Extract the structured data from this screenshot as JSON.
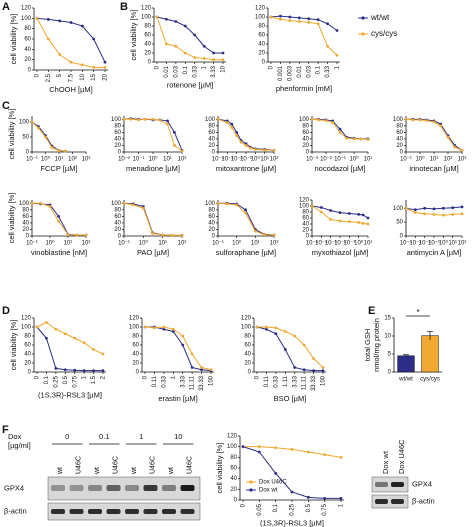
{
  "panels": [
    "A",
    "B",
    "C",
    "D",
    "E",
    "F"
  ],
  "chart_data": [
    {
      "type": "line",
      "ylabel": "cell viability [%]",
      "xlabel": "ChOOH [µM]",
      "categories": [
        "0",
        "2.5",
        "5",
        "7.5",
        "10",
        "15",
        "20"
      ],
      "ylim": [
        0,
        120
      ],
      "yticks": [
        0,
        20,
        40,
        60,
        80,
        100,
        120
      ],
      "series": [
        {
          "color": "#2b2d86",
          "values": [
            100,
            98,
            95,
            92,
            85,
            60,
            15
          ]
        },
        {
          "color": "#f0a830",
          "values": [
            100,
            60,
            30,
            15,
            10,
            5,
            5
          ]
        }
      ]
    },
    {
      "type": "line",
      "ylabel": "cell viability [%]",
      "xlabel": "rotenone [µM]",
      "categories": [
        "0",
        "0.01",
        "0.03",
        "0.1",
        "0.33",
        "1",
        "3.33",
        "10"
      ],
      "ylim": [
        0,
        120
      ],
      "yticks": [
        0,
        20,
        40,
        60,
        80,
        100,
        120
      ],
      "series": [
        {
          "color": "#2b2d86",
          "values": [
            100,
            95,
            90,
            80,
            60,
            35,
            20,
            20
          ]
        },
        {
          "color": "#f0a830",
          "values": [
            100,
            40,
            35,
            20,
            10,
            8,
            5,
            5
          ]
        }
      ]
    },
    {
      "type": "line",
      "xlabel": "phenformin [mM]",
      "categories": [
        "0",
        "0.001",
        "0.003",
        "0.01",
        "0.03",
        "0.1",
        "0.33",
        "1"
      ],
      "ylim": [
        0,
        120
      ],
      "yticks": [
        0,
        20,
        40,
        60,
        80,
        100,
        120
      ],
      "legend": "outside-right",
      "series": [
        {
          "name": "wt/wt",
          "color": "#2b2d86",
          "values": [
            100,
            102,
            100,
            98,
            96,
            94,
            85,
            70
          ]
        },
        {
          "name": "cys/cys",
          "color": "#f0a830",
          "values": [
            100,
            95,
            92,
            90,
            88,
            85,
            35,
            15
          ]
        }
      ]
    },
    {
      "type": "line",
      "xscale": "log",
      "ylabel": "cell viability [%]",
      "xlabel": "FCCP [µM]",
      "x": [
        0.1,
        0.3,
        1,
        3,
        10,
        30
      ],
      "xlim": [
        0.1,
        1000
      ],
      "xticks": [
        {
          "value": 0.1,
          "label": "10⁻¹"
        },
        {
          "value": 1,
          "label": "10⁰"
        },
        {
          "value": 10,
          "label": "10¹"
        },
        {
          "value": 100,
          "label": "10²"
        },
        {
          "value": 1000,
          "label": "10³"
        }
      ],
      "ylim": [
        0,
        120
      ],
      "yticks": [
        0,
        50,
        100
      ],
      "series": [
        {
          "color": "#2b2d86",
          "values": [
            100,
            85,
            55,
            20,
            5,
            3
          ]
        },
        {
          "color": "#f0a830",
          "values": [
            100,
            80,
            50,
            15,
            4,
            3
          ]
        }
      ]
    },
    {
      "type": "line",
      "xscale": "log",
      "xlabel": "menadione [µM]",
      "x": [
        0.01,
        0.03,
        0.1,
        0.3,
        1,
        3,
        10,
        30,
        100
      ],
      "xlim": [
        0.01,
        100
      ],
      "xticks": [
        {
          "value": 0.01,
          "label": "10⁻²"
        },
        {
          "value": 0.1,
          "label": "10⁻¹"
        },
        {
          "value": 1,
          "label": "10⁰"
        },
        {
          "value": 10,
          "label": "10¹"
        },
        {
          "value": 100,
          "label": "10²"
        }
      ],
      "ylim": [
        0,
        110
      ],
      "yticks": [
        0,
        20,
        40,
        60,
        80,
        100
      ],
      "series": [
        {
          "color": "#2b2d86",
          "values": [
            100,
            102,
            100,
            100,
            98,
            98,
            95,
            60,
            5
          ]
        },
        {
          "color": "#f0a830",
          "values": [
            100,
            100,
            98,
            100,
            100,
            97,
            85,
            20,
            3
          ]
        }
      ]
    },
    {
      "type": "line",
      "xscale": "log",
      "xlabel": "mitoxantrone [µM]",
      "x": [
        0.0001,
        0.001,
        0.003,
        0.01,
        0.03,
        0.1,
        0.3,
        1,
        10,
        100
      ],
      "xlim": [
        0.0001,
        100
      ],
      "xticks": [
        {
          "value": 0.0001,
          "label": "10⁻⁴"
        },
        {
          "value": 0.001,
          "label": "10⁻³"
        },
        {
          "value": 0.01,
          "label": "10⁻²"
        },
        {
          "value": 0.1,
          "label": "10⁻¹"
        },
        {
          "value": 1,
          "label": "10⁰"
        },
        {
          "value": 10,
          "label": "10¹"
        },
        {
          "value": 100,
          "label": "10²"
        }
      ],
      "ylim": [
        0,
        110
      ],
      "yticks": [
        0,
        20,
        40,
        60,
        80,
        100
      ],
      "series": [
        {
          "color": "#2b2d86",
          "values": [
            100,
            95,
            85,
            60,
            35,
            25,
            15,
            10,
            8,
            5
          ]
        },
        {
          "color": "#f0a830",
          "values": [
            100,
            90,
            75,
            50,
            30,
            20,
            12,
            8,
            6,
            5
          ]
        }
      ]
    },
    {
      "type": "line",
      "xscale": "log",
      "xlabel": "nocodazol [µM]",
      "x": [
        0.001,
        0.003,
        0.01,
        0.03,
        0.1,
        0.3,
        1,
        3,
        10
      ],
      "xlim": [
        0.001,
        10
      ],
      "xticks": [
        {
          "value": 0.001,
          "label": "10⁻³"
        },
        {
          "value": 0.01,
          "label": "10⁻²"
        },
        {
          "value": 0.1,
          "label": "10⁻¹"
        },
        {
          "value": 1,
          "label": "10⁰"
        },
        {
          "value": 10,
          "label": "10¹"
        }
      ],
      "ylim": [
        0,
        110
      ],
      "yticks": [
        0,
        20,
        40,
        60,
        80,
        100
      ],
      "series": [
        {
          "color": "#2b2d86",
          "values": [
            100,
            100,
            98,
            95,
            70,
            45,
            42,
            40,
            40
          ]
        },
        {
          "color": "#f0a830",
          "values": [
            100,
            98,
            96,
            90,
            60,
            42,
            40,
            40,
            38
          ]
        }
      ]
    },
    {
      "type": "line",
      "xscale": "log",
      "xlabel": "irinotecan [µM]",
      "x": [
        0.1,
        0.3,
        1,
        3,
        10,
        30,
        100,
        300,
        1000
      ],
      "xlim": [
        0.1,
        1000
      ],
      "xticks": [
        {
          "value": 0.1,
          "label": "10⁻¹"
        },
        {
          "value": 1,
          "label": "10⁰"
        },
        {
          "value": 10,
          "label": "10¹"
        },
        {
          "value": 100,
          "label": "10²"
        },
        {
          "value": 1000,
          "label": "10³"
        }
      ],
      "ylim": [
        0,
        110
      ],
      "yticks": [
        0,
        20,
        40,
        60,
        80,
        100
      ],
      "series": [
        {
          "color": "#2b2d86",
          "values": [
            100,
            100,
            100,
            98,
            95,
            85,
            50,
            20,
            5
          ]
        },
        {
          "color": "#f0a830",
          "values": [
            100,
            98,
            98,
            96,
            92,
            80,
            45,
            15,
            5
          ]
        }
      ]
    },
    {
      "type": "line",
      "xscale": "log",
      "ylabel": "cell viability [%]",
      "xlabel": "vinoblastine [nM]",
      "x": [
        0.1,
        0.3,
        1,
        3,
        10,
        30,
        100
      ],
      "xlim": [
        0.1,
        100
      ],
      "xticks": [
        {
          "value": 0.1,
          "label": "10⁻¹"
        },
        {
          "value": 1,
          "label": "10⁰"
        },
        {
          "value": 10,
          "label": "10¹"
        },
        {
          "value": 100,
          "label": "10²"
        }
      ],
      "ylim": [
        0,
        110
      ],
      "yticks": [
        0,
        20,
        40,
        60,
        80,
        100
      ],
      "series": [
        {
          "color": "#2b2d86",
          "values": [
            100,
            98,
            95,
            60,
            5,
            3,
            3
          ]
        },
        {
          "color": "#f0a830",
          "values": [
            100,
            100,
            90,
            45,
            4,
            3,
            3
          ]
        }
      ]
    },
    {
      "type": "line",
      "xscale": "log",
      "xlabel": "PAO [µM]",
      "x": [
        0.1,
        0.3,
        1,
        3,
        10,
        30,
        100
      ],
      "xlim": [
        0.1,
        100
      ],
      "xticks": [
        {
          "value": 0.1,
          "label": "10⁻¹"
        },
        {
          "value": 1,
          "label": "10⁰"
        },
        {
          "value": 10,
          "label": "10¹"
        },
        {
          "value": 100,
          "label": "10²"
        }
      ],
      "ylim": [
        0,
        110
      ],
      "yticks": [
        0,
        20,
        40,
        60,
        80,
        100
      ],
      "series": [
        {
          "color": "#2b2d86",
          "values": [
            100,
            98,
            90,
            10,
            3,
            2,
            2
          ]
        },
        {
          "color": "#f0a830",
          "values": [
            100,
            95,
            85,
            8,
            3,
            2,
            2
          ]
        }
      ]
    },
    {
      "type": "line",
      "xscale": "log",
      "xlabel": "sulforaphane [µM]",
      "x": [
        0.1,
        0.3,
        1,
        3,
        10,
        30,
        100
      ],
      "xlim": [
        0.1,
        100
      ],
      "xticks": [
        {
          "value": 0.1,
          "label": "10⁻¹"
        },
        {
          "value": 1,
          "label": "10⁰"
        },
        {
          "value": 10,
          "label": "10¹"
        },
        {
          "value": 100,
          "label": "10²"
        }
      ],
      "ylim": [
        0,
        110
      ],
      "yticks": [
        0,
        20,
        40,
        60,
        80,
        100
      ],
      "series": [
        {
          "color": "#2b2d86",
          "values": [
            100,
            100,
            98,
            80,
            20,
            5,
            3
          ]
        },
        {
          "color": "#f0a830",
          "values": [
            100,
            98,
            95,
            70,
            15,
            4,
            3
          ]
        }
      ]
    },
    {
      "type": "line",
      "xscale": "log",
      "xlabel": "myxothiazol [µM]",
      "x": [
        1e-05,
        0.0001,
        0.001,
        0.01,
        0.1,
        1,
        3,
        10
      ],
      "xlim": [
        1e-05,
        10
      ],
      "xticks": [
        {
          "value": 1e-05,
          "label": "10⁻⁵"
        },
        {
          "value": 0.0001,
          "label": "10⁻⁴"
        },
        {
          "value": 0.001,
          "label": "10⁻³"
        },
        {
          "value": 0.01,
          "label": "10⁻²"
        },
        {
          "value": 0.1,
          "label": "10⁻¹"
        },
        {
          "value": 1,
          "label": "10⁰"
        },
        {
          "value": 10,
          "label": "10¹"
        }
      ],
      "ylim": [
        0,
        120
      ],
      "yticks": [
        0,
        20,
        40,
        60,
        80,
        100,
        120
      ],
      "series": [
        {
          "color": "#2b2d86",
          "values": [
            100,
            95,
            85,
            78,
            75,
            72,
            70,
            60
          ]
        },
        {
          "color": "#f0a830",
          "values": [
            100,
            80,
            55,
            50,
            48,
            45,
            42,
            40
          ]
        }
      ]
    },
    {
      "type": "line",
      "xscale": "log",
      "xlabel": "antimycin A [µM]",
      "x": [
        0.0001,
        0.001,
        0.01,
        0.1,
        1,
        10,
        100
      ],
      "xlim": [
        0.0001,
        100
      ],
      "xticks": [
        {
          "value": 0.0001,
          "label": "10⁻⁴"
        },
        {
          "value": 0.001,
          "label": "10⁻³"
        },
        {
          "value": 0.01,
          "label": "10⁻²"
        },
        {
          "value": 0.1,
          "label": "10⁻¹"
        },
        {
          "value": 1,
          "label": "10⁰"
        },
        {
          "value": 10,
          "label": "10¹"
        },
        {
          "value": 100,
          "label": "10²"
        }
      ],
      "ylim": [
        0,
        130
      ],
      "yticks": [
        0,
        50,
        100
      ],
      "series": [
        {
          "color": "#2b2d86",
          "values": [
            100,
            95,
            100,
            98,
            100,
            102,
            105
          ]
        },
        {
          "color": "#f0a830",
          "values": [
            100,
            85,
            80,
            78,
            75,
            78,
            80
          ]
        }
      ]
    },
    {
      "type": "line",
      "ylabel": "cell viability [%]",
      "xlabel": "(1S,3R)-RSL3 [µM]",
      "categories": [
        "0",
        "0.1",
        "0.25",
        "0.5",
        "0.75",
        "1",
        "1.5",
        "2"
      ],
      "ylim": [
        0,
        120
      ],
      "yticks": [
        0,
        20,
        40,
        60,
        80,
        100,
        120
      ],
      "series": [
        {
          "color": "#2b2d86",
          "values": [
            100,
            75,
            8,
            5,
            4,
            3,
            3,
            3
          ]
        },
        {
          "color": "#f0a830",
          "values": [
            100,
            110,
            95,
            85,
            75,
            65,
            50,
            40
          ]
        }
      ]
    },
    {
      "type": "line",
      "xlabel": "erastin [µM]",
      "categories": [
        "0",
        "0.11",
        "0.33",
        "1",
        "3.33",
        "11.11",
        "33.33",
        "100"
      ],
      "ylim": [
        0,
        120
      ],
      "yticks": [
        0,
        20,
        40,
        60,
        80,
        100,
        120
      ],
      "series": [
        {
          "color": "#2b2d86",
          "values": [
            100,
            100,
            95,
            90,
            60,
            10,
            5,
            3
          ]
        },
        {
          "color": "#f0a830",
          "values": [
            100,
            98,
            100,
            95,
            80,
            40,
            10,
            5
          ]
        }
      ]
    },
    {
      "type": "line",
      "xlabel": "BSO [µM]",
      "categories": [
        "0",
        "0.11",
        "0.33",
        "1.11",
        "3.33",
        "11.11",
        "33.33",
        "100"
      ],
      "ylim": [
        0,
        120
      ],
      "yticks": [
        0,
        20,
        40,
        60,
        80,
        100,
        120
      ],
      "series": [
        {
          "color": "#2b2d86",
          "values": [
            100,
            95,
            85,
            50,
            10,
            5,
            3,
            3
          ]
        },
        {
          "color": "#f0a830",
          "values": [
            100,
            100,
            98,
            90,
            80,
            60,
            30,
            10
          ]
        }
      ]
    },
    {
      "type": "bar",
      "ylabel": [
        "total GSH",
        "nmol/mg protein"
      ],
      "categories": [
        "wt/wt",
        "cys/cys"
      ],
      "values": [
        4.5,
        10.1
      ],
      "errors": [
        0.3,
        1.2
      ],
      "colors": [
        "#2b2d86",
        "#f0a830"
      ],
      "ylim": [
        0,
        15
      ],
      "yticks": [
        0,
        5,
        10,
        15
      ],
      "annotation": "*"
    },
    {
      "type": "line",
      "ylabel": "cell viability [%]",
      "xlabel": "(1S,3R)-RSL3 [µM]",
      "categories": [
        "0",
        "0.05",
        "0.1",
        "0.25",
        "0.5",
        "0.75",
        "1"
      ],
      "ylim": [
        0,
        120
      ],
      "yticks": [
        0,
        20,
        40,
        60,
        80,
        100,
        120
      ],
      "legend": "lower-left",
      "series": [
        {
          "name": "Dox U46C",
          "color": "#f0a830",
          "values": [
            100,
            100,
            98,
            95,
            90,
            85,
            80
          ]
        },
        {
          "name": "Dox wt",
          "color": "#2b2d86",
          "values": [
            100,
            90,
            50,
            15,
            5,
            3,
            3
          ]
        }
      ]
    }
  ],
  "blot_left": {
    "dox": [
      "Dox",
      "[µg/ml]"
    ],
    "doses": [
      "0",
      "0.1",
      "1",
      "10"
    ],
    "lanes": [
      "wt",
      "U46C",
      "wt",
      "U46C",
      "wt",
      "U46C",
      "wt",
      "U46C"
    ],
    "rows": [
      "GPX4",
      "β-actin"
    ]
  },
  "blot_right": {
    "lanes": [
      "Dox wt",
      "Dox U46C"
    ],
    "rows": [
      "GPX4",
      "β-actin"
    ]
  }
}
